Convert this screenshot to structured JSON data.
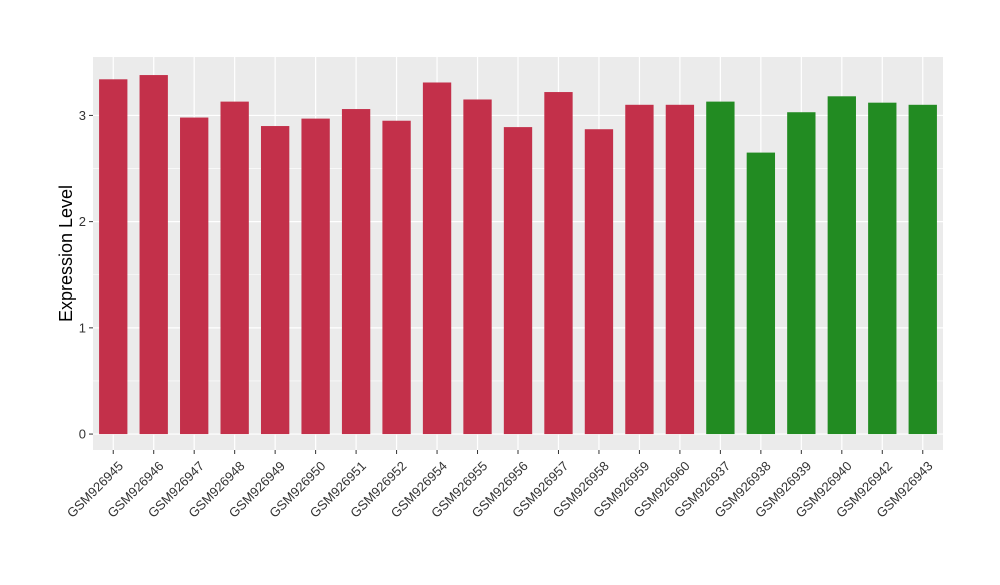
{
  "chart_data": {
    "type": "bar",
    "title": "",
    "xlabel": "",
    "ylabel": "Expression Level",
    "ylim": [
      -0.15,
      3.55
    ],
    "yticks": [
      0,
      1,
      2,
      3
    ],
    "grid": true,
    "legend": "none",
    "colors": {
      "group_a": "#C3304A",
      "group_b": "#228B22",
      "panel_bg": "#EBEBEB",
      "grid": "#FFFFFF",
      "tick": "#333333"
    },
    "categories": [
      "GSM926945",
      "GSM926946",
      "GSM926947",
      "GSM926948",
      "GSM926949",
      "GSM926950",
      "GSM926951",
      "GSM926952",
      "GSM926954",
      "GSM926955",
      "GSM926956",
      "GSM926957",
      "GSM926958",
      "GSM926959",
      "GSM926960",
      "GSM926937",
      "GSM926938",
      "GSM926939",
      "GSM926940",
      "GSM926942",
      "GSM926943"
    ],
    "values": [
      3.34,
      3.38,
      2.98,
      3.13,
      2.9,
      2.97,
      3.06,
      2.95,
      3.31,
      3.15,
      2.89,
      3.22,
      2.87,
      3.1,
      3.1,
      3.13,
      2.65,
      3.03,
      3.18,
      3.12,
      3.1
    ],
    "groups": [
      "group_a",
      "group_a",
      "group_a",
      "group_a",
      "group_a",
      "group_a",
      "group_a",
      "group_a",
      "group_a",
      "group_a",
      "group_a",
      "group_a",
      "group_a",
      "group_a",
      "group_a",
      "group_b",
      "group_b",
      "group_b",
      "group_b",
      "group_b",
      "group_b"
    ]
  }
}
